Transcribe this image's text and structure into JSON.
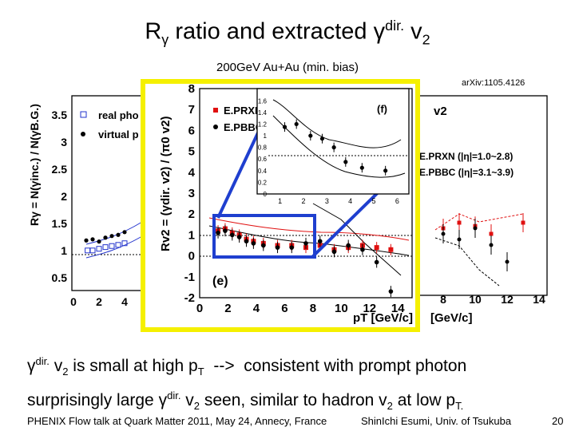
{
  "slide": {
    "title": {
      "pre": "R",
      "gamma": "γ",
      "mid": " ratio and extracted ",
      "gamma2": "γ",
      "sup": "dir.",
      "post": " v",
      "sub": "2"
    },
    "subtitle": "200GeV Au+Au (min. bias)",
    "arxiv": "arXiv:1105.4126",
    "bullet1": {
      "g": "γ",
      "sup": "dir.",
      "a": " v",
      "sub1": "2",
      "b": " is small at high p",
      "sub2": "T",
      "c": "  -->  consistent with prompt photon"
    },
    "bullet2": {
      "a": "surprisingly large ",
      "g": "γ",
      "sup": "dir.",
      "b": " v",
      "sub1": "2",
      "c": " seen, similar to hadron v",
      "sub2": "2",
      "d": " at low p",
      "sub3": "T."
    },
    "footer_left": "PHENIX Flow talk at Quark Matter 2011, May 24, Annecy, France",
    "footer_mid": "ShinIchi Esumi, Univ. of Tsukuba",
    "footer_right": "20"
  },
  "colors": {
    "highlight_border": "#f5f000",
    "arrow": "#1f3fcf",
    "series_rxn": "#e01010",
    "series_bbc": "#000000"
  },
  "chart_data": [
    {
      "type": "scatter",
      "panel": "left (partially hidden)",
      "ylabel": "Rγ = N(γinc.) / N(γB.G.)",
      "yticks": [
        "3.5",
        "3",
        "2.5",
        "2",
        "1.5",
        "1",
        "0.5"
      ],
      "xticks": [
        "0",
        "2",
        "4"
      ],
      "legend": [
        "real pho",
        "virtual p"
      ],
      "ylim": [
        0.3,
        3.8
      ],
      "series": [
        {
          "name": "real pho",
          "marker": "open-square",
          "x": [
            1.1,
            1.5,
            2.0,
            2.5,
            3.0,
            3.5,
            4.0
          ],
          "y": [
            1.02,
            1.02,
            1.05,
            1.08,
            1.1,
            1.12,
            1.15
          ]
        },
        {
          "name": "virtual p",
          "marker": "filled-circle",
          "x": [
            1.0,
            1.5,
            2.0,
            2.5,
            3.0,
            3.5,
            4.0
          ],
          "y": [
            1.2,
            1.22,
            1.18,
            1.25,
            1.28,
            1.3,
            1.35
          ]
        }
      ]
    },
    {
      "type": "scatter",
      "panel": "(e)",
      "ylabel": "Rv2 = (γdir. v2) / (π0 v2)",
      "xlabel": "pT [GeV/c]",
      "xticks": [
        "0",
        "2",
        "4",
        "6",
        "8",
        "10",
        "12",
        "14"
      ],
      "yticks": [
        "8",
        "7",
        "6",
        "5",
        "4",
        "3",
        "2",
        "1",
        "0",
        "-1",
        "-2"
      ],
      "xlim": [
        0,
        15
      ],
      "ylim": [
        -2,
        8
      ],
      "legend": [
        "E.PRXN",
        "E.PBBC"
      ],
      "series": [
        {
          "name": "E.PRXN",
          "color": "#e01010",
          "x": [
            1.3,
            1.8,
            2.3,
            2.8,
            3.3,
            3.8,
            4.5,
            5.5,
            6.5,
            7.5,
            8.5,
            9.5,
            10.5,
            11.5,
            12.5,
            13.5
          ],
          "y": [
            1.2,
            1.3,
            1.1,
            1.0,
            0.8,
            0.7,
            0.6,
            0.5,
            0.5,
            0.4,
            0.5,
            0.3,
            0.4,
            0.5,
            0.4,
            0.3
          ]
        },
        {
          "name": "E.PBBC",
          "color": "#000000",
          "x": [
            1.3,
            1.8,
            2.3,
            2.8,
            3.3,
            3.8,
            4.5,
            5.5,
            6.5,
            7.5,
            8.5,
            9.5,
            10.5,
            11.5,
            12.5,
            13.5
          ],
          "y": [
            1.1,
            1.2,
            1.0,
            0.9,
            0.7,
            0.6,
            0.5,
            0.4,
            0.4,
            0.6,
            0.7,
            0.2,
            0.5,
            0.3,
            -0.3,
            -1.7
          ]
        }
      ]
    },
    {
      "type": "scatter",
      "panel": "(f) inset",
      "xticks": [
        "1",
        "2",
        "3",
        "4",
        "5",
        "6"
      ],
      "yticks": [
        "1.6",
        "1.4",
        "1.2",
        "1",
        "0.8",
        "0.6",
        "0.4",
        "0.2",
        "0"
      ],
      "xlim": [
        0.5,
        6.5
      ],
      "ylim": [
        0,
        1.7
      ],
      "series": [
        {
          "name": "E.PBBC",
          "x": [
            1.2,
            1.7,
            2.3,
            2.8,
            3.3,
            3.8,
            4.5,
            5.5
          ],
          "y": [
            1.15,
            1.2,
            1.0,
            0.95,
            0.8,
            0.55,
            0.45,
            0.4
          ]
        }
      ]
    },
    {
      "type": "scatter",
      "panel": "right (partially hidden)",
      "title": "v2",
      "xlabel": "[GeV/c]",
      "xticks": [
        "8",
        "10",
        "12",
        "14"
      ],
      "legend": [
        "E.PRXN (|η|=1.0~2.8)",
        "E.PBBC (|η|=3.1~3.9)"
      ],
      "series": [
        {
          "name": "E.PRXN (|η|=1.0~2.8)",
          "x": [
            8,
            9,
            10,
            11,
            13
          ],
          "y": [
            0.6,
            0.65,
            0.62,
            0.55,
            0.65
          ]
        },
        {
          "name": "E.PBBC (|η|=3.1~3.9)",
          "x": [
            8,
            9,
            10,
            11,
            12
          ],
          "y": [
            0.55,
            0.5,
            0.6,
            0.45,
            0.3
          ]
        }
      ]
    }
  ],
  "labels": {
    "left_ylabel": "Rγ = N(γinc.) / N(γB.G.)",
    "left_legend_real": "real pho",
    "left_legend_virtual": "virtual p",
    "e_ylabel": "Rv2 = (γdir. v2) / (π0 v2)",
    "e_xlabel": "pT [GeV/c]",
    "e_legend_rxn": "E.PRXN",
    "e_legend_bbc": "E.PBBC",
    "e_panel": "(e)",
    "f_panel": "(f)",
    "right_title": "v2",
    "right_legend_rxn": "E.PRXN (|η|=1.0~2.8)",
    "right_legend_bbc": "E.PBBC (|η|=3.1~3.9)",
    "right_xlabel": "[GeV/c]"
  }
}
